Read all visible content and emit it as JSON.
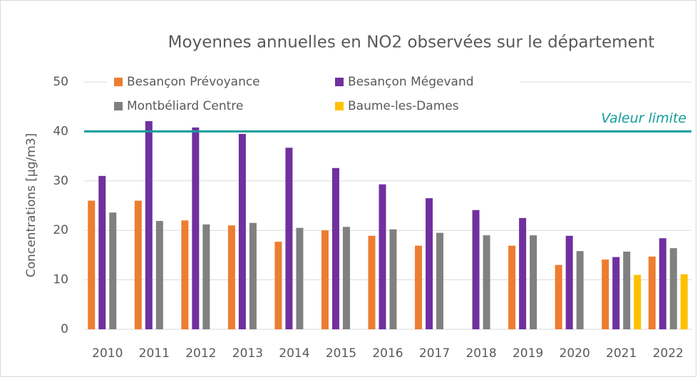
{
  "chart_data": {
    "type": "bar",
    "title": "Moyennes annuelles en NO2 observées sur le département",
    "y_label": "Concentrations [µg/m3]",
    "categories": [
      "2010",
      "2011",
      "2012",
      "2013",
      "2014",
      "2015",
      "2016",
      "2017",
      "2018",
      "2019",
      "2020",
      "2021",
      "2022"
    ],
    "series": [
      {
        "name": "Besançon Prévoyance",
        "color": "#ed7d31",
        "values": [
          26,
          26,
          22,
          21,
          17.7,
          20,
          18.9,
          16.9,
          null,
          16.9,
          13,
          14.1,
          14.7
        ]
      },
      {
        "name": "Besançon Mégevand",
        "color": "#7030a0",
        "values": [
          31,
          42.8,
          40.8,
          39.5,
          36.7,
          32.6,
          29.3,
          26.5,
          24.1,
          22.5,
          18.9,
          14.6,
          18.4
        ]
      },
      {
        "name": "Montbéliard Centre",
        "color": "#808080",
        "values": [
          23.6,
          21.9,
          21.2,
          21.5,
          20.5,
          20.7,
          20.2,
          19.5,
          19,
          19,
          15.8,
          15.7,
          16.4
        ]
      },
      {
        "name": "Baume-les-Dames",
        "color": "#ffc000",
        "values": [
          null,
          null,
          null,
          null,
          null,
          null,
          null,
          null,
          null,
          null,
          null,
          11,
          11.1
        ]
      }
    ],
    "limit": {
      "value": 40,
      "label": "Valeur limite",
      "color": "#169c9c"
    },
    "ylim": [
      0,
      50
    ],
    "yticks": [
      0,
      10,
      20,
      30,
      40,
      50
    ],
    "grid": true,
    "legend": "top-left"
  }
}
